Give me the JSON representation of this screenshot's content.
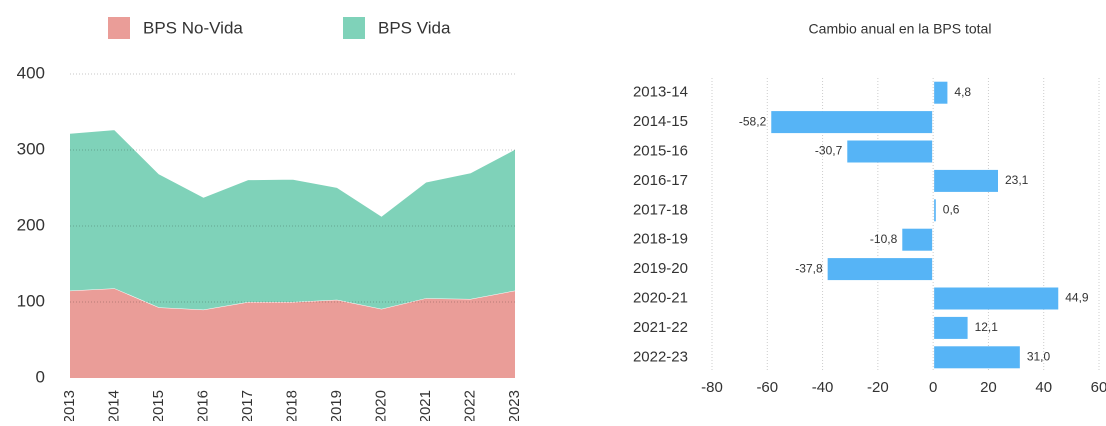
{
  "chart_data": [
    {
      "type": "area",
      "stacked": true,
      "categories": [
        "2013",
        "2014",
        "2015",
        "2016",
        "2017",
        "2018",
        "2019",
        "2020",
        "2021",
        "2022",
        "2023"
      ],
      "series": [
        {
          "name": "BPS No-Vida",
          "color": "#ea9d98",
          "values": [
            115,
            118,
            93,
            90,
            100,
            100,
            103,
            91,
            105,
            104,
            115
          ]
        },
        {
          "name": "BPS Vida",
          "color": "#7fd2b9",
          "values": [
            207,
            208.8,
            175.6,
            147.9,
            161,
            161.6,
            147.8,
            122,
            152.9,
            166,
            186
          ]
        }
      ],
      "ylim": [
        0,
        400
      ],
      "yticks": [
        0,
        100,
        200,
        300,
        400
      ],
      "grid": true,
      "legend": "top"
    },
    {
      "type": "hbar",
      "title": "Cambio anual en la BPS total",
      "categories": [
        "2013-14",
        "2014-15",
        "2015-16",
        "2016-17",
        "2017-18",
        "2018-19",
        "2019-20",
        "2020-21",
        "2021-22",
        "2022-23"
      ],
      "values": [
        4.8,
        -58.2,
        -30.7,
        23.1,
        0.6,
        -10.8,
        -37.8,
        44.9,
        12.1,
        31.0
      ],
      "value_labels": [
        "4,8",
        "-58,2",
        "-30,7",
        "23,1",
        "0,6",
        "-10,8",
        "-37,8",
        "44,9",
        "12,1",
        "31,0"
      ],
      "color": "#56b4f6",
      "xlim": [
        -80,
        60
      ],
      "xticks": [
        -80,
        -60,
        -40,
        -20,
        0,
        20,
        40,
        60
      ],
      "grid": true
    }
  ]
}
